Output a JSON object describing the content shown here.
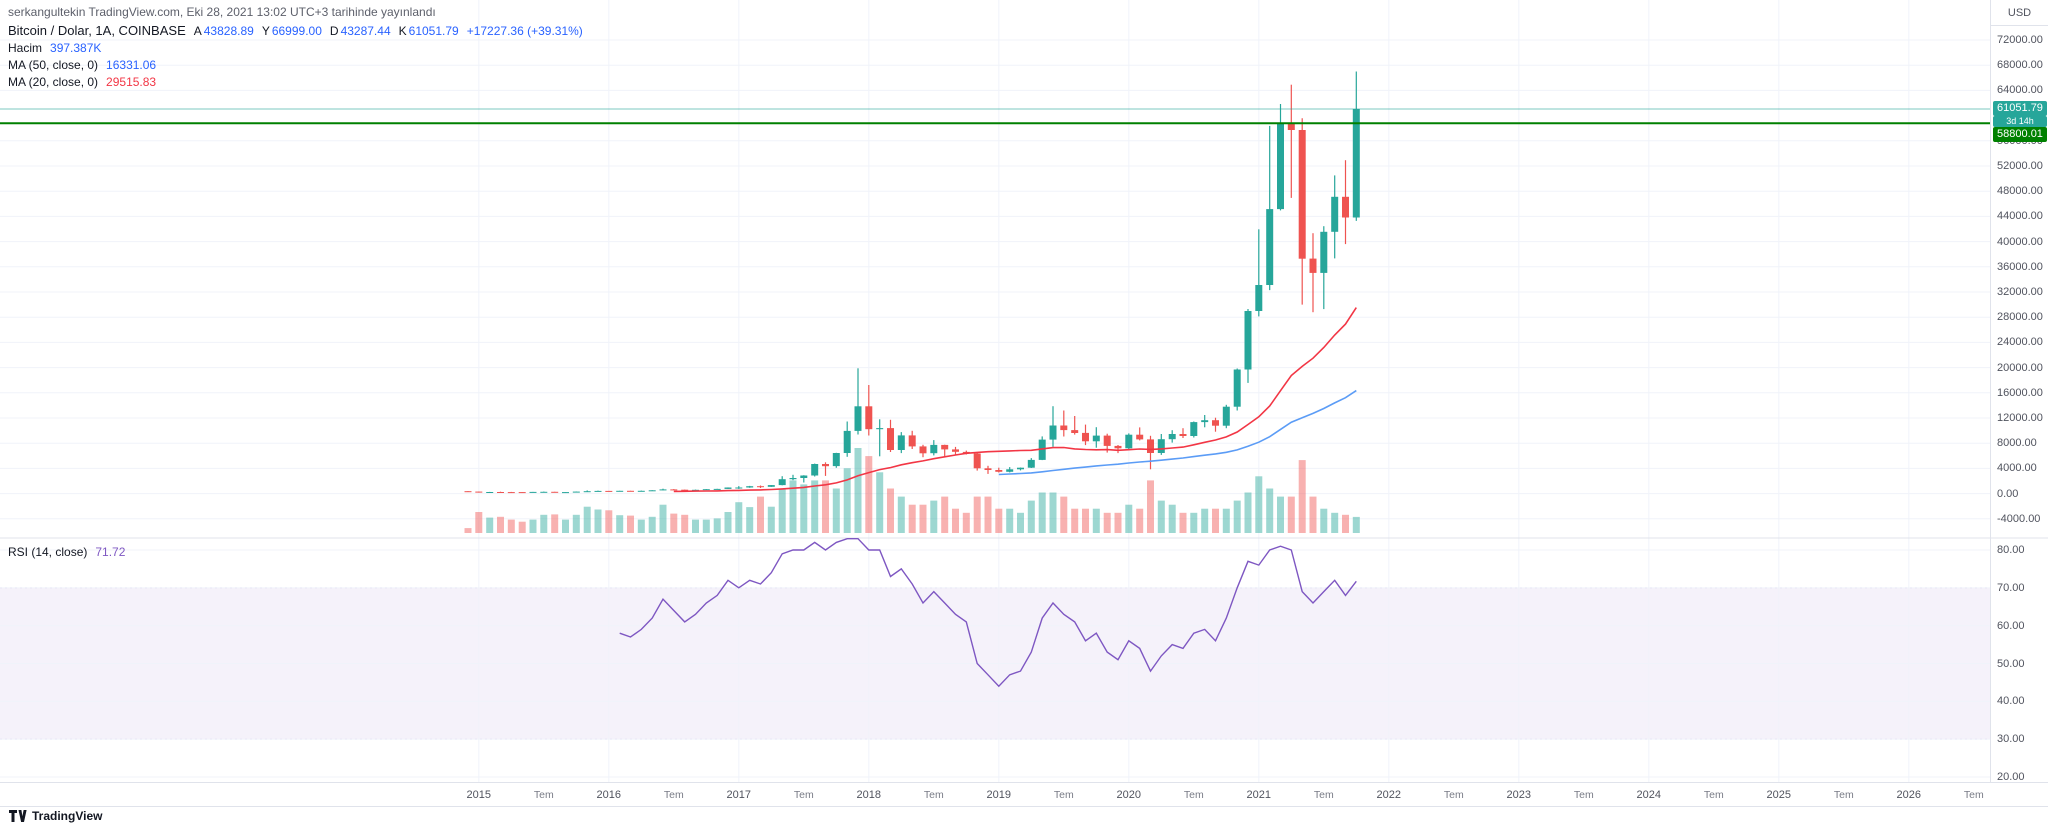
{
  "header": {
    "published_line": "serkangultekin TradingView.com, Eki 28, 2021 13:02 UTC+3 tarihinde yayınlandı"
  },
  "legend": {
    "symbol_title": "Bitcoin / Dolar, 1A, COINBASE",
    "ohlc": {
      "open_label": "A",
      "open": "43828.89",
      "high_label": "Y",
      "high": "66999.00",
      "low_label": "D",
      "low": "43287.44",
      "close_label": "K",
      "close": "61051.79",
      "change": "+17227.36 (+39.31%)"
    },
    "volume_label": "Hacim",
    "volume_value": "397.387K",
    "ma50_label": "MA (50, close, 0)",
    "ma50_value": "16331.06",
    "ma20_label": "MA (20, close, 0)",
    "ma20_value": "29515.83"
  },
  "rsi_legend": {
    "label": "RSI (14, close)",
    "value": "71.72"
  },
  "price_axis": {
    "unit": "USD",
    "ticks": [
      72000,
      68000,
      64000,
      56000,
      52000,
      48000,
      44000,
      40000,
      36000,
      32000,
      28000,
      24000,
      20000,
      16000,
      12000,
      8000,
      4000,
      0,
      -4000
    ],
    "badges": {
      "last_price": "61051.79",
      "countdown": "3d 14h",
      "alert_price": "58800.01"
    }
  },
  "rsi_axis": {
    "ticks": [
      80,
      70,
      60,
      50,
      40,
      30,
      20
    ]
  },
  "time_axis": {
    "ticks": [
      {
        "label": "2015",
        "m": 1
      },
      {
        "label": "Tem",
        "m": 7
      },
      {
        "label": "2016",
        "m": 13
      },
      {
        "label": "Tem",
        "m": 19
      },
      {
        "label": "2017",
        "m": 25
      },
      {
        "label": "Tem",
        "m": 31
      },
      {
        "label": "2018",
        "m": 37
      },
      {
        "label": "Tem",
        "m": 43
      },
      {
        "label": "2019",
        "m": 49
      },
      {
        "label": "Tem",
        "m": 55
      },
      {
        "label": "2020",
        "m": 61
      },
      {
        "label": "Tem",
        "m": 67
      },
      {
        "label": "2021",
        "m": 73
      },
      {
        "label": "Tem",
        "m": 79
      },
      {
        "label": "2022",
        "m": 85
      },
      {
        "label": "Tem",
        "m": 91
      },
      {
        "label": "2023",
        "m": 97
      },
      {
        "label": "Tem",
        "m": 103
      },
      {
        "label": "2024",
        "m": 109
      },
      {
        "label": "Tem",
        "m": 115
      },
      {
        "label": "2025",
        "m": 121
      },
      {
        "label": "Tem",
        "m": 127
      },
      {
        "label": "2026",
        "m": 133
      },
      {
        "label": "Tem",
        "m": 139
      }
    ]
  },
  "footer": {
    "brand": "TradingView"
  },
  "colors": {
    "up": "#26a69a",
    "down": "#ef5350",
    "vol_up": "rgba(38,166,154,0.45)",
    "vol_down": "rgba(239,83,80,0.45)",
    "ma20": "#f23645",
    "ma50": "#5b9cf6",
    "rsi": "#7e57c2",
    "alert_line": "#008000",
    "last_price_line": "rgba(38,166,154,0.6)",
    "grid": "#f0f3fa",
    "band_fill": "rgba(126,87,194,0.08)",
    "band_line": "rgba(126,87,194,0.4)"
  },
  "chart_data": {
    "type": "candlestick",
    "title": "Bitcoin / Dolar, 1A, COINBASE",
    "interval": "1M",
    "first_candle": "2014-12",
    "last_candle": "2021-10",
    "price_axis_range": [
      -7000,
      74400
    ],
    "x_axis_range": [
      "2014-12",
      "2026-12"
    ],
    "grid": true,
    "last_price": 61051.79,
    "alert_line_price": 58800.01,
    "volume_unit": "K",
    "candles_format": [
      "open",
      "high",
      "low",
      "close",
      "volume_K"
    ],
    "candles": [
      [
        378,
        383,
        285,
        320,
        120
      ],
      [
        320,
        320,
        152,
        217,
        520
      ],
      [
        217,
        265,
        210,
        254,
        380
      ],
      [
        254,
        298,
        236,
        244,
        400
      ],
      [
        244,
        262,
        213,
        236,
        330
      ],
      [
        236,
        247,
        227,
        230,
        280
      ],
      [
        230,
        268,
        219,
        263,
        330
      ],
      [
        263,
        319,
        255,
        284,
        450
      ],
      [
        284,
        288,
        198,
        230,
        460
      ],
      [
        230,
        247,
        223,
        236,
        330
      ],
      [
        236,
        334,
        235,
        314,
        450
      ],
      [
        314,
        504,
        299,
        377,
        650
      ],
      [
        377,
        469,
        344,
        430,
        580
      ],
      [
        430,
        436,
        350,
        368,
        560
      ],
      [
        368,
        447,
        365,
        437,
        440
      ],
      [
        437,
        444,
        398,
        416,
        430
      ],
      [
        416,
        470,
        414,
        448,
        330
      ],
      [
        448,
        545,
        438,
        531,
        400
      ],
      [
        531,
        780,
        516,
        672,
        700
      ],
      [
        672,
        707,
        603,
        624,
        480
      ],
      [
        624,
        628,
        465,
        575,
        450
      ],
      [
        575,
        628,
        565,
        610,
        330
      ],
      [
        610,
        715,
        607,
        700,
        330
      ],
      [
        700,
        755,
        678,
        745,
        360
      ],
      [
        745,
        982,
        740,
        963,
        520
      ],
      [
        963,
        1191,
        752,
        970,
        760
      ],
      [
        970,
        1220,
        925,
        1179,
        640
      ],
      [
        1179,
        1290,
        891,
        1071,
        900
      ],
      [
        1071,
        1347,
        1062,
        1347,
        650
      ],
      [
        1347,
        2760,
        1322,
        2286,
        1100
      ],
      [
        2286,
        2980,
        2122,
        2480,
        1300
      ],
      [
        2480,
        2916,
        1758,
        2875,
        1200
      ],
      [
        2875,
        4764,
        2716,
        4703,
        1300
      ],
      [
        4703,
        4975,
        2817,
        4360,
        1300
      ],
      [
        4360,
        6470,
        4100,
        6440,
        1100
      ],
      [
        6440,
        11441,
        5844,
        9946,
        1600
      ],
      [
        9946,
        19891,
        9380,
        13850,
        2100
      ],
      [
        13850,
        17234,
        9222,
        10221,
        1900
      ],
      [
        10221,
        11786,
        5920,
        10397,
        1500
      ],
      [
        10397,
        11710,
        6600,
        6928,
        1100
      ],
      [
        6928,
        9768,
        6425,
        9240,
        900
      ],
      [
        9240,
        9964,
        7076,
        7494,
        700
      ],
      [
        7494,
        7748,
        5780,
        6404,
        700
      ],
      [
        6404,
        8491,
        6070,
        7729,
        800
      ],
      [
        7729,
        7760,
        5880,
        7011,
        900
      ],
      [
        7011,
        7412,
        6160,
        6626,
        600
      ],
      [
        6626,
        6830,
        6205,
        6371,
        500
      ],
      [
        6371,
        6558,
        3648,
        4017,
        900
      ],
      [
        4017,
        4410,
        3122,
        3742,
        900
      ],
      [
        3742,
        4110,
        3350,
        3457,
        600
      ],
      [
        3457,
        4199,
        3373,
        3854,
        600
      ],
      [
        3854,
        4140,
        3675,
        4105,
        500
      ],
      [
        4105,
        5627,
        4060,
        5350,
        800
      ],
      [
        5350,
        9074,
        5320,
        8574,
        1000
      ],
      [
        8574,
        13880,
        7432,
        10817,
        1000
      ],
      [
        10817,
        13185,
        9071,
        10085,
        900
      ],
      [
        10085,
        12325,
        9360,
        9630,
        600
      ],
      [
        9630,
        10949,
        7700,
        8293,
        600
      ],
      [
        8293,
        10540,
        7293,
        9199,
        600
      ],
      [
        9199,
        9505,
        6515,
        7569,
        500
      ],
      [
        7569,
        7712,
        6425,
        7193,
        500
      ],
      [
        7193,
        9553,
        6850,
        9350,
        700
      ],
      [
        9350,
        10500,
        8443,
        8599,
        600
      ],
      [
        8599,
        9170,
        3850,
        6438,
        1300
      ],
      [
        6438,
        9460,
        6140,
        8629,
        800
      ],
      [
        8629,
        10067,
        8100,
        9454,
        700
      ],
      [
        9454,
        10380,
        8830,
        9138,
        500
      ],
      [
        9138,
        11450,
        8900,
        11351,
        500
      ],
      [
        11351,
        12473,
        10519,
        11655,
        600
      ],
      [
        11655,
        12050,
        9825,
        10776,
        600
      ],
      [
        10776,
        14100,
        10374,
        13797,
        600
      ],
      [
        13797,
        19863,
        13195,
        19698,
        800
      ],
      [
        19698,
        29300,
        17572,
        28990,
        1000
      ],
      [
        28990,
        41950,
        28130,
        33114,
        1400
      ],
      [
        33114,
        58367,
        32296,
        45164,
        1100
      ],
      [
        45164,
        61844,
        44950,
        58763,
        900
      ],
      [
        58763,
        64900,
        46930,
        57720,
        900
      ],
      [
        57720,
        59592,
        30000,
        37298,
        1800
      ],
      [
        37298,
        41330,
        28800,
        35026,
        900
      ],
      [
        35026,
        42448,
        29278,
        41553,
        600
      ],
      [
        41553,
        50500,
        37332,
        47112,
        500
      ],
      [
        47112,
        52920,
        39600,
        43824,
        450
      ],
      [
        43828.89,
        66999,
        43287.44,
        61051.79,
        397.387
      ]
    ],
    "overlays": [
      {
        "name": "MA (20, close, 0)",
        "type": "sma",
        "period": 20,
        "source": "close",
        "last_value": 29515.83
      },
      {
        "name": "MA (50, close, 0)",
        "type": "sma",
        "period": 50,
        "source": "close",
        "last_value": 16331.06
      }
    ],
    "rsi": {
      "name": "RSI (14, close)",
      "period": 14,
      "start_candle_index": 14,
      "last_value": 71.72,
      "band": [
        30,
        70
      ],
      "axis_range": [
        18.7,
        83.2
      ],
      "values": [
        58,
        57,
        59,
        62,
        67,
        64,
        61,
        63,
        66,
        68,
        72,
        70,
        72,
        71,
        74,
        79,
        80,
        80,
        82,
        80,
        82,
        83,
        83,
        80,
        80,
        73,
        75,
        71,
        66,
        69,
        66,
        63,
        61,
        50,
        47,
        44,
        47,
        48,
        53,
        62,
        66,
        63,
        61,
        56,
        58,
        53,
        51,
        56,
        54,
        48,
        52,
        55,
        54,
        58,
        59,
        56,
        62,
        70,
        77,
        76,
        80,
        81,
        80,
        69,
        66,
        69,
        72,
        68,
        71.72
      ]
    }
  }
}
